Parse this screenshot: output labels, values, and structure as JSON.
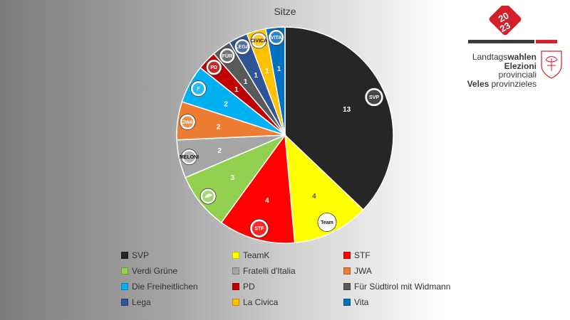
{
  "title": "Sitze",
  "logo": {
    "year_top": "20",
    "year_bottom": "23",
    "line1_light": "Landtags",
    "line1_bold": "wahlen",
    "line2_bold": "Elezioni",
    "line2_light": " provinciali",
    "line3_bold": "Veles",
    "line3_light": " provinzieles",
    "accent_color": "#d4202a",
    "dark_color": "#3a3a3a"
  },
  "chart_data": {
    "type": "pie",
    "title": "Sitze",
    "start_angle_deg": 0,
    "direction": "clockwise",
    "legend_position": "bottom",
    "slices": [
      {
        "label": "SVP",
        "value": 13,
        "color": "#262626",
        "label_color": "#ffffff",
        "badge": "SVP"
      },
      {
        "label": "TeamK",
        "value": 4,
        "color": "#ffff00",
        "label_color": "#555555",
        "badge": "Team"
      },
      {
        "label": "STF",
        "value": 4,
        "color": "#ff0000",
        "label_color": "#ffffff",
        "badge": "STF"
      },
      {
        "label": "Verdi Grüne",
        "value": 3,
        "color": "#92d050",
        "label_color": "#ffffff",
        "badge": ""
      },
      {
        "label": "Fratelli d'Italia",
        "value": 2,
        "color": "#a6a6a6",
        "label_color": "#ffffff",
        "badge": "MELONI"
      },
      {
        "label": "JWA",
        "value": 2,
        "color": "#ed7d31",
        "label_color": "#ffffff",
        "badge": "JWA"
      },
      {
        "label": "Die Freiheitlichen",
        "value": 2,
        "color": "#00b0f0",
        "label_color": "#ffffff",
        "badge": "F"
      },
      {
        "label": "PD",
        "value": 1,
        "color": "#c00000",
        "label_color": "#ffffff",
        "badge": "PD"
      },
      {
        "label": "Für Südtirol mit Widmann",
        "value": 1,
        "color": "#595959",
        "label_color": "#ffffff",
        "badge": "FÜR"
      },
      {
        "label": "Lega",
        "value": 1,
        "color": "#2f5597",
        "label_color": "#ffffff",
        "badge": "LEGA"
      },
      {
        "label": "La Civica",
        "value": 1,
        "color": "#ffc000",
        "label_color": "#ffffff",
        "badge": "CIVICA"
      },
      {
        "label": "Vita",
        "value": 1,
        "color": "#0070c0",
        "label_color": "#ffffff",
        "badge": "VITA"
      }
    ]
  }
}
